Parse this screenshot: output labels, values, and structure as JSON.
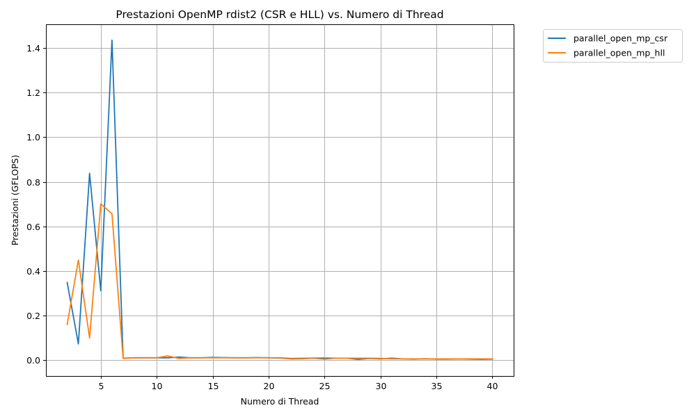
{
  "chart_data": {
    "type": "line",
    "title": "Prestazioni OpenMP rdist2 (CSR e HLL) vs. Numero di Thread",
    "xlabel": "Numero di Thread",
    "ylabel": "Prestazioni (GFLOPS)",
    "xlim": [
      0.1,
      41.9
    ],
    "ylim": [
      -0.0718,
      1.507
    ],
    "xticks": [
      5,
      10,
      15,
      20,
      25,
      30,
      35,
      40
    ],
    "yticks": [
      0.0,
      0.2,
      0.4,
      0.6,
      0.8,
      1.0,
      1.2,
      1.4
    ],
    "xtick_labels": [
      "5",
      "10",
      "15",
      "20",
      "25",
      "30",
      "35",
      "40"
    ],
    "ytick_labels": [
      "0.0",
      "0.2",
      "0.4",
      "0.6",
      "0.8",
      "1.0",
      "1.2",
      "1.4"
    ],
    "grid": true,
    "legend_position": "outside-top-right",
    "x": [
      2,
      3,
      4,
      5,
      6,
      7,
      8,
      9,
      10,
      11,
      12,
      13,
      14,
      15,
      16,
      17,
      18,
      19,
      20,
      21,
      22,
      23,
      24,
      25,
      26,
      27,
      28,
      29,
      30,
      31,
      32,
      33,
      34,
      35,
      36,
      37,
      38,
      39,
      40
    ],
    "series": [
      {
        "name": "parallel_open_mp_csr",
        "color": "#1f77b4",
        "values": [
          0.348,
          0.072,
          0.838,
          0.311,
          1.436,
          0.008,
          0.01,
          0.01,
          0.01,
          0.01,
          0.013,
          0.01,
          0.01,
          0.012,
          0.011,
          0.01,
          0.01,
          0.011,
          0.01,
          0.009,
          0.005,
          0.006,
          0.008,
          0.005,
          0.008,
          0.008,
          0.003,
          0.007,
          0.005,
          0.008,
          0.005,
          0.004,
          0.006,
          0.004,
          0.004,
          0.005,
          0.004,
          0.003,
          0.004
        ]
      },
      {
        "name": "parallel_open_mp_hll",
        "color": "#ff7f0e",
        "values": [
          0.159,
          0.449,
          0.099,
          0.701,
          0.656,
          0.007,
          0.01,
          0.01,
          0.01,
          0.018,
          0.007,
          0.01,
          0.01,
          0.01,
          0.01,
          0.01,
          0.01,
          0.01,
          0.01,
          0.01,
          0.007,
          0.008,
          0.009,
          0.01,
          0.008,
          0.008,
          0.008,
          0.008,
          0.007,
          0.005,
          0.005,
          0.005,
          0.005,
          0.005,
          0.005,
          0.005,
          0.005,
          0.005,
          0.005
        ]
      }
    ]
  }
}
